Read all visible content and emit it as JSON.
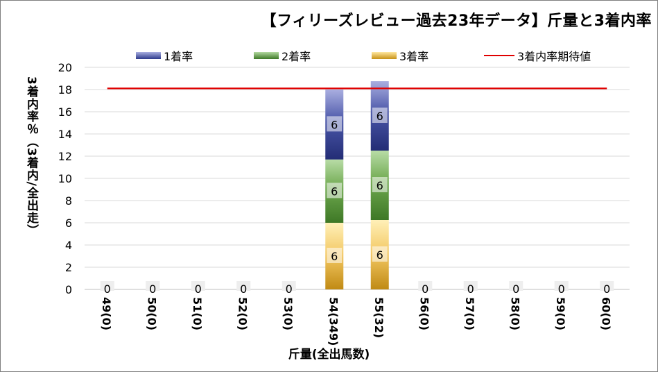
{
  "chart_data": {
    "type": "bar",
    "title": "【フィリーズレビュー過去23年データ】斤量と3着内率",
    "xlabel": "斤量(全出馬数)",
    "ylabel": "3着内率％（3着内/全出走）",
    "ylim": [
      0,
      20
    ],
    "yticks": [
      0,
      2,
      4,
      6,
      8,
      10,
      12,
      14,
      16,
      18,
      20
    ],
    "grid": true,
    "legend_position": "top",
    "categories": [
      "49(0)",
      "50(0)",
      "51(0)",
      "52(0)",
      "53(0)",
      "54(349)",
      "55(32)",
      "56(0)",
      "57(0)",
      "58(0)",
      "59(0)",
      "60(0)"
    ],
    "stacked": true,
    "series": [
      {
        "name": "3着率",
        "values": [
          0,
          0,
          0,
          0,
          0,
          6,
          6.25,
          0,
          0,
          0,
          0,
          0
        ],
        "color": "#d9a520"
      },
      {
        "name": "2着率",
        "values": [
          0,
          0,
          0,
          0,
          0,
          5.7,
          6.25,
          0,
          0,
          0,
          0,
          0
        ],
        "color": "#5e9a3c"
      },
      {
        "name": "1着率",
        "values": [
          0,
          0,
          0,
          0,
          0,
          6.3,
          6.25,
          0,
          0,
          0,
          0,
          0
        ],
        "color": "#2e3a8c"
      }
    ],
    "segment_labels": {
      "3着率": [
        "0",
        "0",
        "0",
        "0",
        "0",
        "6",
        "6",
        "",
        "",
        "",
        "",
        ""
      ],
      "2着率": [
        "",
        "",
        "",
        "",
        "",
        "6",
        "6",
        "",
        "",
        "",
        "",
        ""
      ],
      "1着率": [
        "",
        "",
        "",
        "",
        "",
        "6",
        "6",
        "",
        "",
        "",
        "",
        ""
      ]
    },
    "zero_labels": [
      "0",
      "0",
      "0",
      "0",
      "0",
      "",
      "",
      "0",
      "0",
      "0",
      "0",
      "0"
    ],
    "reference_line": {
      "name": "3着内率期待値",
      "value": 18.1,
      "color": "#e00000"
    }
  }
}
